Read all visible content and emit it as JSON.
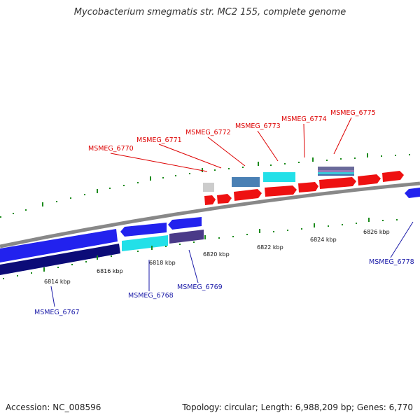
{
  "title": "Mycobacterium smegmatis str. MC2 155, complete genome",
  "footer": {
    "accession": "Accession: NC_008596",
    "summary": "Topology: circular; Length: 6,988,209 bp; Genes: 6,770"
  },
  "colors": {
    "forward_label": "#dd0000",
    "reverse_label": "#1a1aa8",
    "backbone": "#888888",
    "tick": "#1a8a1a"
  },
  "ticks": [
    "6814 kbp",
    "6816 kbp",
    "6818 kbp",
    "6820 kbp",
    "6822 kbp",
    "6824 kbp",
    "6826 kbp"
  ],
  "forward_labels": [
    "MSMEG_6770",
    "MSMEG_6771",
    "MSMEG_6772",
    "MSMEG_6773",
    "MSMEG_6774",
    "MSMEG_6775"
  ],
  "reverse_labels": [
    "MSMEG_6767",
    "MSMEG_6768",
    "MSMEG_6769",
    "MSMEG_6778"
  ]
}
